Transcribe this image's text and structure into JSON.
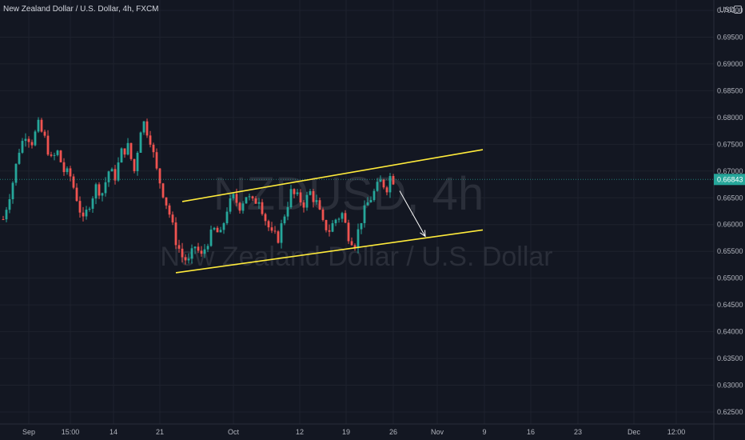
{
  "header": {
    "title": "New Zealand Dollar / U.S. Dollar, 4h, FXCM",
    "currency": "USD"
  },
  "watermark": {
    "symbol": "NZDUSD, 4h",
    "name": "New Zealand Dollar / U.S. Dollar"
  },
  "current_price_label": "0.66843",
  "colors": {
    "background": "#131722",
    "up": "#26a69a",
    "down": "#ef5350",
    "channel": "#ffeb3b",
    "arrow": "#ffffff",
    "price_line": "#26a69a",
    "grid": "#1e222d"
  },
  "chart_data": {
    "type": "candlestick",
    "symbol": "NZDUSD",
    "timeframe": "4h",
    "source": "FXCM",
    "y_ticks": [
      "0.70000",
      "0.69500",
      "0.69000",
      "0.68500",
      "0.68000",
      "0.67500",
      "0.67000",
      "0.66500",
      "0.66000",
      "0.65500",
      "0.65000",
      "0.64500",
      "0.64000",
      "0.63500",
      "0.63000",
      "0.62500"
    ],
    "ylim": [
      0.6225,
      0.704
    ],
    "x_ticks": [
      "Sep",
      "15:00",
      "14",
      "21",
      "Oct",
      "12",
      "19",
      "26",
      "Nov",
      "9",
      "16",
      "23",
      "Dec",
      "12:00"
    ],
    "last_price": 0.66843,
    "close_path": [
      {
        "t": 0,
        "p": 0.661
      },
      {
        "t": 3,
        "p": 0.668
      },
      {
        "t": 5,
        "p": 0.674
      },
      {
        "t": 7,
        "p": 0.677
      },
      {
        "t": 9,
        "p": 0.6755
      },
      {
        "t": 11,
        "p": 0.6785
      },
      {
        "t": 13,
        "p": 0.676
      },
      {
        "t": 15,
        "p": 0.672
      },
      {
        "t": 17,
        "p": 0.6735
      },
      {
        "t": 19,
        "p": 0.67
      },
      {
        "t": 21,
        "p": 0.669
      },
      {
        "t": 23,
        "p": 0.665
      },
      {
        "t": 25,
        "p": 0.6605
      },
      {
        "t": 27,
        "p": 0.664
      },
      {
        "t": 29,
        "p": 0.667
      },
      {
        "t": 31,
        "p": 0.666
      },
      {
        "t": 33,
        "p": 0.67
      },
      {
        "t": 35,
        "p": 0.669
      },
      {
        "t": 37,
        "p": 0.6735
      },
      {
        "t": 39,
        "p": 0.6745
      },
      {
        "t": 41,
        "p": 0.67
      },
      {
        "t": 43,
        "p": 0.678
      },
      {
        "t": 44,
        "p": 0.679
      },
      {
        "t": 46,
        "p": 0.676
      },
      {
        "t": 48,
        "p": 0.67
      },
      {
        "t": 50,
        "p": 0.666
      },
      {
        "t": 52,
        "p": 0.662
      },
      {
        "t": 54,
        "p": 0.657
      },
      {
        "t": 56,
        "p": 0.654
      },
      {
        "t": 58,
        "p": 0.653
      },
      {
        "t": 60,
        "p": 0.656
      },
      {
        "t": 62,
        "p": 0.654
      },
      {
        "t": 64,
        "p": 0.657
      },
      {
        "t": 66,
        "p": 0.659
      },
      {
        "t": 68,
        "p": 0.658
      },
      {
        "t": 70,
        "p": 0.663
      },
      {
        "t": 72,
        "p": 0.665
      },
      {
        "t": 74,
        "p": 0.6635
      },
      {
        "t": 76,
        "p": 0.6655
      },
      {
        "t": 78,
        "p": 0.664
      },
      {
        "t": 80,
        "p": 0.665
      },
      {
        "t": 82,
        "p": 0.661
      },
      {
        "t": 84,
        "p": 0.658
      },
      {
        "t": 86,
        "p": 0.6575
      },
      {
        "t": 88,
        "p": 0.662
      },
      {
        "t": 90,
        "p": 0.666
      },
      {
        "t": 92,
        "p": 0.665
      },
      {
        "t": 94,
        "p": 0.664
      },
      {
        "t": 96,
        "p": 0.666
      },
      {
        "t": 98,
        "p": 0.664
      },
      {
        "t": 100,
        "p": 0.66
      },
      {
        "t": 102,
        "p": 0.659
      },
      {
        "t": 104,
        "p": 0.661
      },
      {
        "t": 106,
        "p": 0.662
      },
      {
        "t": 108,
        "p": 0.658
      },
      {
        "t": 110,
        "p": 0.6565
      },
      {
        "t": 112,
        "p": 0.661
      },
      {
        "t": 114,
        "p": 0.664
      },
      {
        "t": 116,
        "p": 0.666
      },
      {
        "t": 118,
        "p": 0.668
      },
      {
        "t": 120,
        "p": 0.667
      },
      {
        "t": 121,
        "p": 0.669
      },
      {
        "t": 122,
        "p": 0.6684
      }
    ],
    "channel": {
      "upper": [
        {
          "t": 56,
          "p": 0.6643
        },
        {
          "t": 150,
          "p": 0.674
        }
      ],
      "lower": [
        {
          "t": 54,
          "p": 0.651
        },
        {
          "t": 150,
          "p": 0.659
        }
      ]
    },
    "projection_arrow": {
      "from": {
        "t": 124,
        "p": 0.6663
      },
      "to": {
        "t": 132,
        "p": 0.6578
      }
    },
    "grid": true,
    "legend": "none"
  }
}
